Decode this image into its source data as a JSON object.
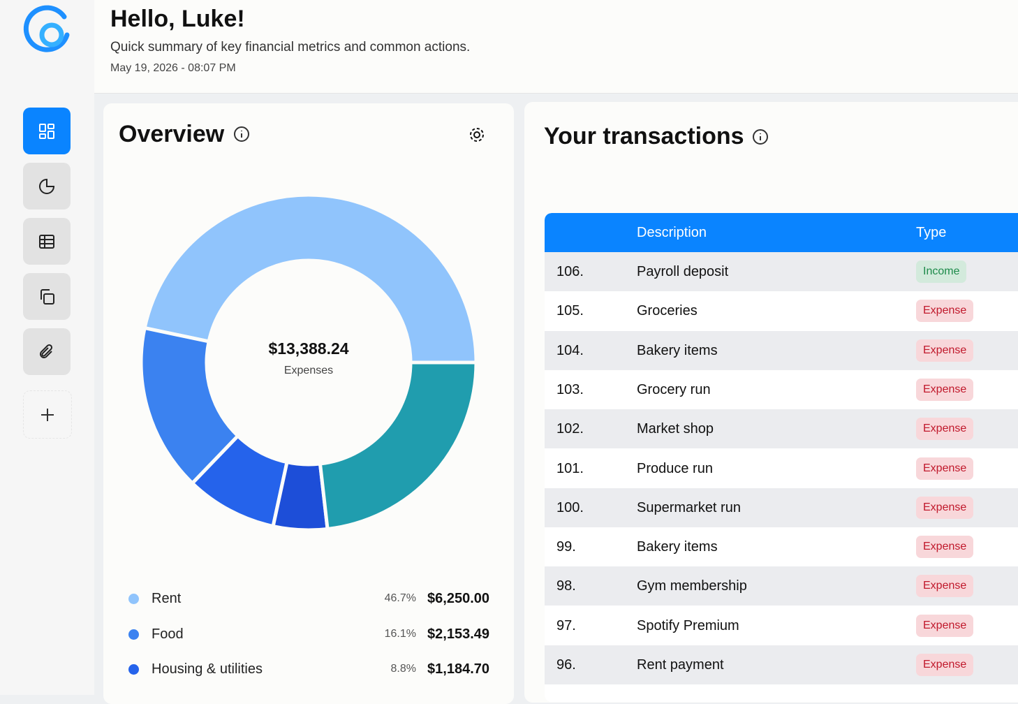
{
  "header": {
    "title": "Hello, Luke!",
    "subtitle": "Quick summary of key financial metrics and common actions.",
    "date": "May 19, 2026 - 08:07 PM"
  },
  "chart_data": {
    "type": "pie",
    "title": "Overview",
    "center_value": "$13,388.24",
    "center_label": "Expenses",
    "categories": [
      "Rent",
      "Food",
      "Housing & utilities",
      null,
      null
    ],
    "values": [
      46.7,
      16.1,
      8.8,
      5.2,
      23.2
    ],
    "value_labels": [
      "46.7%",
      "16.1%",
      "8.8%",
      null,
      null
    ],
    "amounts": [
      "$6,250.00",
      "$2,153.49",
      "$1,184.70",
      null,
      null
    ],
    "colors": [
      "#90c4fc",
      "#3b82f0",
      "#2563eb",
      "#1d4ed8",
      "#209dae"
    ]
  },
  "transactions": {
    "title": "Your transactions",
    "columns": [
      "Description",
      "Type"
    ],
    "rows": [
      [
        "106.",
        "Payroll deposit",
        "Income"
      ],
      [
        "105.",
        "Groceries",
        "Expense"
      ],
      [
        "104.",
        "Bakery items",
        "Expense"
      ],
      [
        "103.",
        "Grocery run",
        "Expense"
      ],
      [
        "102.",
        "Market shop",
        "Expense"
      ],
      [
        "101.",
        "Produce run",
        "Expense"
      ],
      [
        "100.",
        "Supermarket run",
        "Expense"
      ],
      [
        "99.",
        "Bakery items",
        "Expense"
      ],
      [
        "98.",
        "Gym membership",
        "Expense"
      ],
      [
        "97.",
        "Spotify Premium",
        "Expense"
      ],
      [
        "96.",
        "Rent payment",
        "Expense"
      ]
    ]
  }
}
